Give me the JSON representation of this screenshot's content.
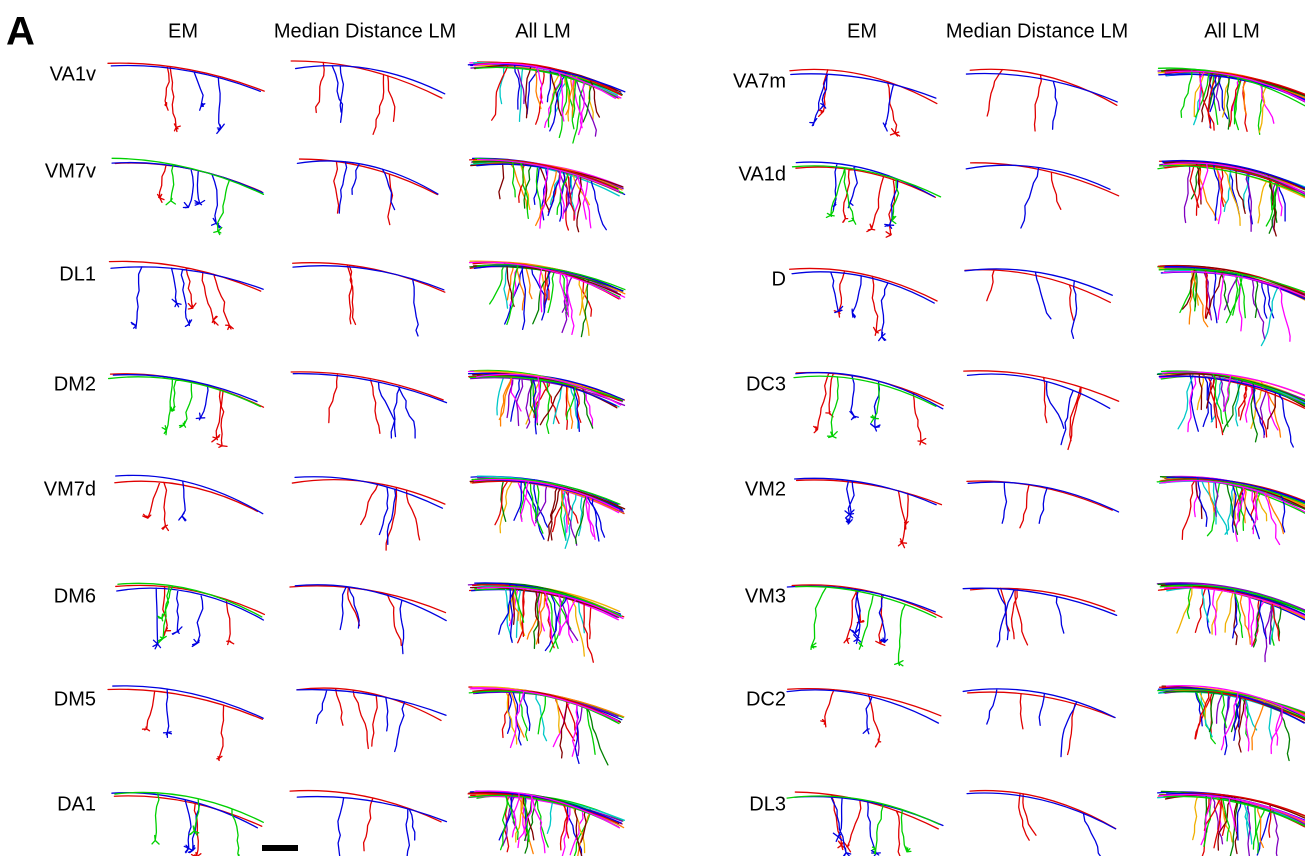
{
  "panel_label": "A",
  "left": {
    "columns": [
      "EM",
      "Median Distance LM",
      "All LM"
    ],
    "rows": [
      "VA1v",
      "VM7v",
      "DL1",
      "DM2",
      "VM7d",
      "DM6",
      "DM5",
      "DA1"
    ]
  },
  "right": {
    "columns": [
      "EM",
      "Median Distance LM",
      "All LM"
    ],
    "rows": [
      "VA7m",
      "VA1d",
      "D",
      "DC3",
      "VM2",
      "VM3",
      "DC2",
      "DL3"
    ]
  }
}
